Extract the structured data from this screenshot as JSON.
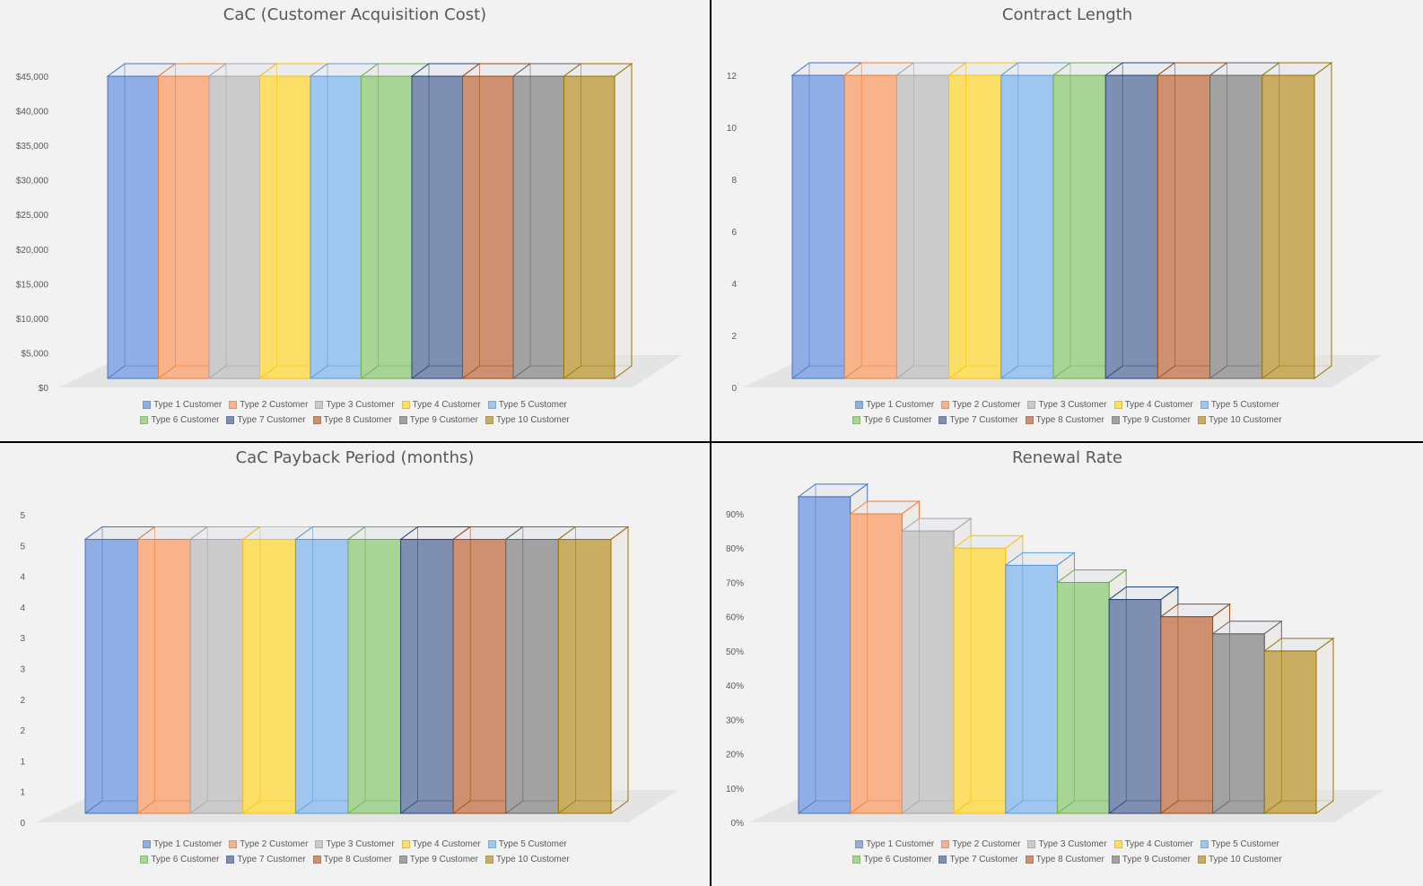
{
  "series_colors": [
    "#8faee5",
    "#f9b38a",
    "#cbcbcb",
    "#fbdf66",
    "#9ec6ee",
    "#a9d497",
    "#7f8fb1",
    "#cd9070",
    "#a2a2a2",
    "#c8ad62"
  ],
  "series_strokes": [
    "#4472c4",
    "#ed7d31",
    "#a5a5a5",
    "#ffc000",
    "#5b9bd5",
    "#70ad47",
    "#264478",
    "#9e480e",
    "#636363",
    "#997300"
  ],
  "legend": [
    "Type 1 Customer",
    "Type 2 Customer",
    "Type 3 Customer",
    "Type 4 Customer",
    "Type 5 Customer",
    "Type 6 Customer",
    "Type 7 Customer",
    "Type 8 Customer",
    "Type 9 Customer",
    "Type 10 Customer"
  ],
  "chart_data": [
    {
      "type": "bar",
      "title": "CaC (Customer Acquisition Cost)",
      "series": [
        {
          "name": "Type 1 Customer",
          "values": [
            45000
          ]
        },
        {
          "name": "Type 2 Customer",
          "values": [
            45000
          ]
        },
        {
          "name": "Type 3 Customer",
          "values": [
            45000
          ]
        },
        {
          "name": "Type 4 Customer",
          "values": [
            45000
          ]
        },
        {
          "name": "Type 5 Customer",
          "values": [
            45000
          ]
        },
        {
          "name": "Type 6 Customer",
          "values": [
            45000
          ]
        },
        {
          "name": "Type 7 Customer",
          "values": [
            45000
          ]
        },
        {
          "name": "Type 8 Customer",
          "values": [
            45000
          ]
        },
        {
          "name": "Type 9 Customer",
          "values": [
            45000
          ]
        },
        {
          "name": "Type 10 Customer",
          "values": [
            45000
          ]
        }
      ],
      "ylim": [
        0,
        45000
      ],
      "yticks": [
        "$0",
        "$5,000",
        "$10,000",
        "$15,000",
        "$20,000",
        "$25,000",
        "$30,000",
        "$35,000",
        "$40,000",
        "$45,000"
      ],
      "legend_position": "bottom"
    },
    {
      "type": "bar",
      "title": "Contract Length",
      "series": [
        {
          "name": "Type 1 Customer",
          "values": [
            12
          ]
        },
        {
          "name": "Type 2 Customer",
          "values": [
            12
          ]
        },
        {
          "name": "Type 3 Customer",
          "values": [
            12
          ]
        },
        {
          "name": "Type 4 Customer",
          "values": [
            12
          ]
        },
        {
          "name": "Type 5 Customer",
          "values": [
            12
          ]
        },
        {
          "name": "Type 6 Customer",
          "values": [
            12
          ]
        },
        {
          "name": "Type 7 Customer",
          "values": [
            12
          ]
        },
        {
          "name": "Type 8 Customer",
          "values": [
            12
          ]
        },
        {
          "name": "Type 9 Customer",
          "values": [
            12
          ]
        },
        {
          "name": "Type 10 Customer",
          "values": [
            12
          ]
        }
      ],
      "ylim": [
        0,
        12
      ],
      "yticks": [
        "0",
        "2",
        "4",
        "6",
        "8",
        "10",
        "12"
      ],
      "legend_position": "bottom"
    },
    {
      "type": "bar",
      "title": "CaC Payback Period (months)",
      "series": [
        {
          "name": "Type 1 Customer",
          "values": [
            4.6
          ]
        },
        {
          "name": "Type 2 Customer",
          "values": [
            4.6
          ]
        },
        {
          "name": "Type 3 Customer",
          "values": [
            4.6
          ]
        },
        {
          "name": "Type 4 Customer",
          "values": [
            4.6
          ]
        },
        {
          "name": "Type 5 Customer",
          "values": [
            4.6
          ]
        },
        {
          "name": "Type 6 Customer",
          "values": [
            4.6
          ]
        },
        {
          "name": "Type 7 Customer",
          "values": [
            4.6
          ]
        },
        {
          "name": "Type 8 Customer",
          "values": [
            4.6
          ]
        },
        {
          "name": "Type 9 Customer",
          "values": [
            4.6
          ]
        },
        {
          "name": "Type 10 Customer",
          "values": [
            4.6
          ]
        }
      ],
      "ylim": [
        0,
        5
      ],
      "yticks": [
        "0",
        "1",
        "1",
        "2",
        "2",
        "3",
        "3",
        "4",
        "4",
        "5",
        "5"
      ],
      "legend_position": "bottom"
    },
    {
      "type": "bar",
      "title": "Renewal Rate",
      "series": [
        {
          "name": "Type 1 Customer",
          "values": [
            0.95
          ]
        },
        {
          "name": "Type 2 Customer",
          "values": [
            0.9
          ]
        },
        {
          "name": "Type 3 Customer",
          "values": [
            0.85
          ]
        },
        {
          "name": "Type 4 Customer",
          "values": [
            0.8
          ]
        },
        {
          "name": "Type 5 Customer",
          "values": [
            0.75
          ]
        },
        {
          "name": "Type 6 Customer",
          "values": [
            0.7
          ]
        },
        {
          "name": "Type 7 Customer",
          "values": [
            0.65
          ]
        },
        {
          "name": "Type 8 Customer",
          "values": [
            0.6
          ]
        },
        {
          "name": "Type 9 Customer",
          "values": [
            0.55
          ]
        },
        {
          "name": "Type 10 Customer",
          "values": [
            0.5
          ]
        }
      ],
      "ylim": [
        0,
        0.9
      ],
      "yticks": [
        "0%",
        "10%",
        "20%",
        "30%",
        "40%",
        "50%",
        "60%",
        "70%",
        "80%",
        "90%"
      ],
      "legend_position": "bottom"
    }
  ]
}
